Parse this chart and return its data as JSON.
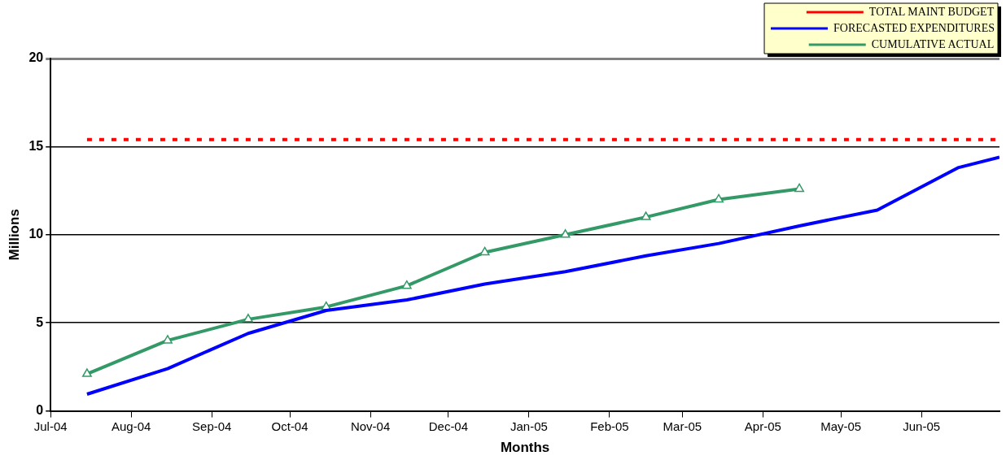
{
  "chart_data": {
    "type": "line",
    "xlabel": "Months",
    "ylabel": "Millions",
    "xlim": [
      "2004-07-01",
      "2005-07-01"
    ],
    "xticks": [
      {
        "value": "2004-07-01",
        "label": "Jul-04"
      },
      {
        "value": "2004-08-01",
        "label": "Aug-04"
      },
      {
        "value": "2004-09-01",
        "label": "Sep-04"
      },
      {
        "value": "2004-10-01",
        "label": "Oct-04"
      },
      {
        "value": "2004-11-01",
        "label": "Nov-04"
      },
      {
        "value": "2004-12-01",
        "label": "Dec-04"
      },
      {
        "value": "2005-01-01",
        "label": "Jan-05"
      },
      {
        "value": "2005-02-01",
        "label": "Feb-05"
      },
      {
        "value": "2005-03-01",
        "label": "Mar-05"
      },
      {
        "value": "2005-04-01",
        "label": "Apr-05"
      },
      {
        "value": "2005-05-01",
        "label": "May-05"
      },
      {
        "value": "2005-06-01",
        "label": "Jun-05"
      }
    ],
    "ylim": [
      0,
      20
    ],
    "yticks": [
      0,
      5,
      10,
      15,
      20
    ],
    "grid": "y",
    "legend": "top right",
    "series": [
      {
        "name": "TOTAL MAINT BUDGET",
        "color": "#ff0000",
        "line_style": "dotted",
        "marker": "none",
        "x": [
          "2004-07-15",
          "2005-07-01"
        ],
        "values": [
          15.4,
          15.4
        ]
      },
      {
        "name": "FORECASTED EXPENDITURES",
        "color": "#0000ff",
        "line_style": "solid",
        "marker": "none",
        "x": [
          "2004-07-15",
          "2004-08-15",
          "2004-09-15",
          "2004-10-15",
          "2004-11-15",
          "2004-12-15",
          "2005-01-15",
          "2005-02-15",
          "2005-03-15",
          "2005-04-15",
          "2005-05-15",
          "2005-06-15",
          "2005-07-01"
        ],
        "values": [
          0.95,
          2.4,
          4.4,
          5.7,
          6.3,
          7.2,
          7.9,
          8.8,
          9.5,
          10.5,
          11.4,
          13.8,
          14.4
        ]
      },
      {
        "name": "CUMULATIVE ACTUAL",
        "color": "#339966",
        "line_style": "solid",
        "marker": "triangle",
        "x": [
          "2004-07-15",
          "2004-08-15",
          "2004-09-15",
          "2004-10-15",
          "2004-11-15",
          "2004-12-15",
          "2005-01-15",
          "2005-02-15",
          "2005-03-15",
          "2005-04-15"
        ],
        "values": [
          2.1,
          4.0,
          5.2,
          5.9,
          7.1,
          9.0,
          10.0,
          11.0,
          12.0,
          12.6
        ]
      }
    ]
  }
}
